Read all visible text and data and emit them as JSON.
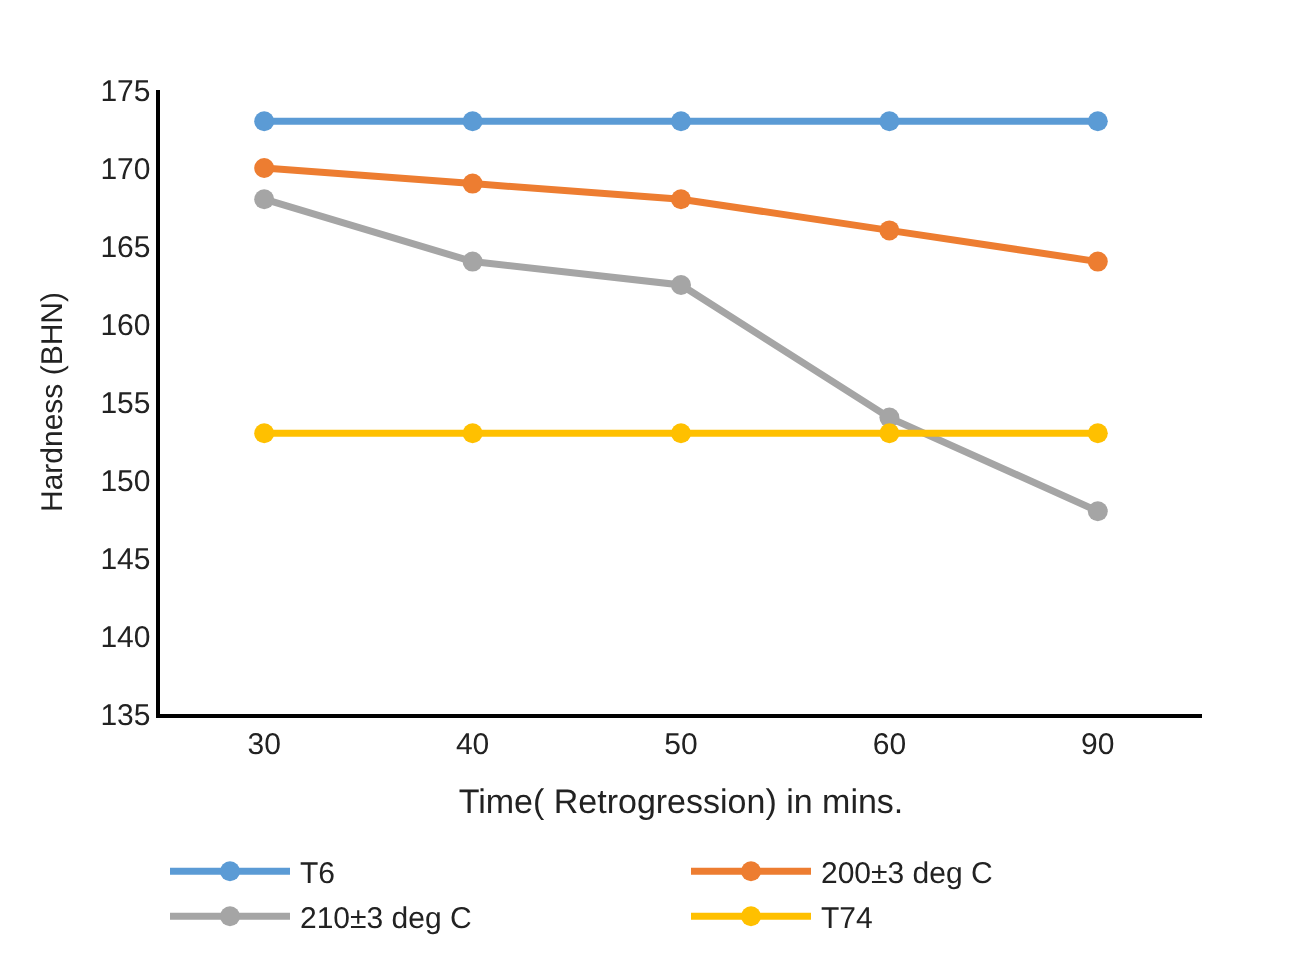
{
  "chart_data": {
    "type": "line",
    "xlabel": "Time( Retrogression) in mins.",
    "ylabel": "Hardness (BHN)",
    "categories": [
      "30",
      "40",
      "50",
      "60",
      "90"
    ],
    "series": [
      {
        "name": "T6",
        "color": "#5b9bd5",
        "values": [
          173,
          173,
          173,
          173,
          173
        ]
      },
      {
        "name": "200±3 deg C",
        "color": "#ed7d31",
        "values": [
          170,
          169,
          168,
          166,
          164
        ]
      },
      {
        "name": "210±3 deg C",
        "color": "#a5a5a5",
        "values": [
          168,
          164,
          162.5,
          154,
          148
        ]
      },
      {
        "name": "T74",
        "color": "#ffc000",
        "values": [
          153,
          153,
          153,
          153,
          153
        ]
      }
    ],
    "ylim": [
      135,
      175
    ],
    "yticks": [
      135,
      140,
      145,
      150,
      155,
      160,
      165,
      170,
      175
    ],
    "legend": "bottom",
    "marker": "circle",
    "line_style": "solid"
  }
}
